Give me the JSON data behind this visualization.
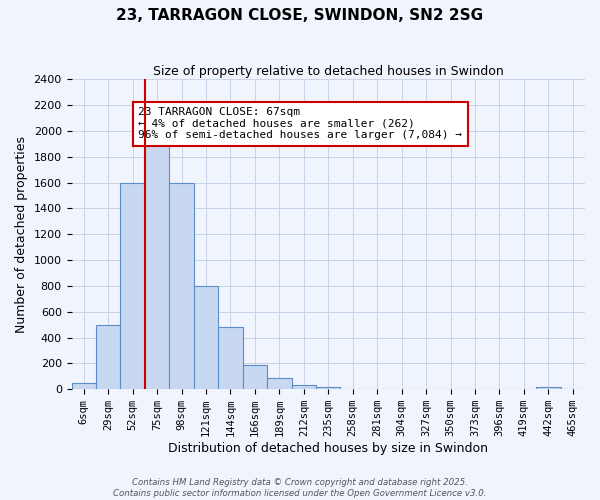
{
  "title": "23, TARRAGON CLOSE, SWINDON, SN2 2SG",
  "subtitle": "Size of property relative to detached houses in Swindon",
  "xlabel": "Distribution of detached houses by size in Swindon",
  "ylabel": "Number of detached properties",
  "bin_labels": [
    "6sqm",
    "29sqm",
    "52sqm",
    "75sqm",
    "98sqm",
    "121sqm",
    "144sqm",
    "166sqm",
    "189sqm",
    "212sqm",
    "235sqm",
    "258sqm",
    "281sqm",
    "304sqm",
    "327sqm",
    "350sqm",
    "373sqm",
    "396sqm",
    "419sqm",
    "442sqm",
    "465sqm"
  ],
  "bar_values": [
    50,
    500,
    1600,
    1950,
    1600,
    800,
    480,
    185,
    90,
    35,
    15,
    5,
    0,
    0,
    0,
    0,
    0,
    0,
    0,
    15,
    0
  ],
  "bar_color": "#c8d8f0",
  "bar_edge_color": "#5b8dc8",
  "vline_x": 2.5,
  "vline_color": "#cc0000",
  "ylim": [
    0,
    2400
  ],
  "yticks": [
    0,
    200,
    400,
    600,
    800,
    1000,
    1200,
    1400,
    1600,
    1800,
    2000,
    2200,
    2400
  ],
  "annotation_title": "23 TARRAGON CLOSE: 67sqm",
  "annotation_line1": "← 4% of detached houses are smaller (262)",
  "annotation_line2": "96% of semi-detached houses are larger (7,084) →",
  "bg_color": "#f0f4fc",
  "grid_color": "#c8d4e8",
  "footer1": "Contains HM Land Registry data © Crown copyright and database right 2025.",
  "footer2": "Contains public sector information licensed under the Open Government Licence v3.0."
}
